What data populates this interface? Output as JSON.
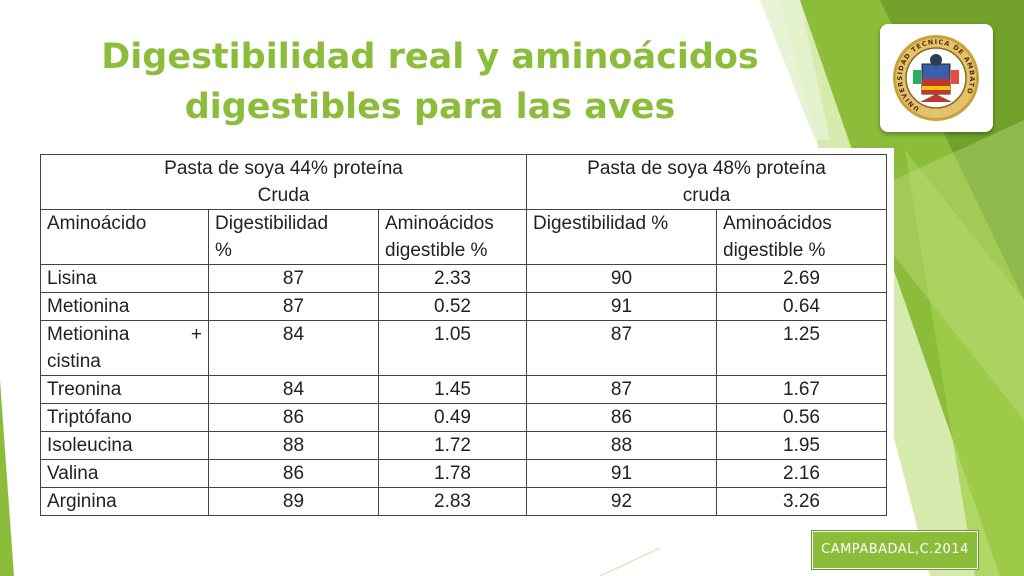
{
  "slide": {
    "title_line1": "Digestibilidad real y aminoácidos",
    "title_line2": "digestibles para las aves",
    "credit": "CAMPABADAL,C.2014",
    "logo_text": "UNIVERSIDAD TECNICA DE AMBATO",
    "colors": {
      "accent": "#8cbd3a",
      "accent_dark": "#6a9a27",
      "accent_light": "#b5d96a"
    }
  },
  "table": {
    "group_44_line1": "Pasta de soya 44% proteína",
    "group_44_line2": "Cruda",
    "group_48_line1": "Pasta de soya 48% proteína",
    "group_48_line2": "cruda",
    "col_amino": "Aminoácido",
    "col_dig_line1": "Digestibilidad",
    "col_dig_line2": "%",
    "col_amd_line1": "Aminoácidos",
    "col_amd_line2": "digestible %",
    "col_dig48": "Digestibilidad %",
    "col_amd48_line1": "Aminoácidos",
    "col_amd48_line2": "digestible %",
    "rows": [
      {
        "name": "Lisina",
        "d44": "87",
        "a44": "2.33",
        "d48": "90",
        "a48": "2.69"
      },
      {
        "name": "Metionina",
        "d44": "87",
        "a44": "0.52",
        "d48": "91",
        "a48": "0.64"
      },
      {
        "name_line1": "Metionina",
        "plus": "+",
        "name_line2": "cistina",
        "d44": "84",
        "a44": "1.05",
        "d48": "87",
        "a48": "1.25"
      },
      {
        "name": "Treonina",
        "d44": "84",
        "a44": "1.45",
        "d48": "87",
        "a48": "1.67"
      },
      {
        "name": "Triptófano",
        "d44": "86",
        "a44": "0.49",
        "d48": "86",
        "a48": "0.56"
      },
      {
        "name": "Isoleucina",
        "d44": "88",
        "a44": "1.72",
        "d48": "88",
        "a48": "1.95"
      },
      {
        "name": "Valina",
        "d44": "86",
        "a44": "1.78",
        "d48": "91",
        "a48": "2.16"
      },
      {
        "name": "Arginina",
        "d44": "89",
        "a44": "2.83",
        "d48": "92",
        "a48": "3.26"
      }
    ]
  }
}
